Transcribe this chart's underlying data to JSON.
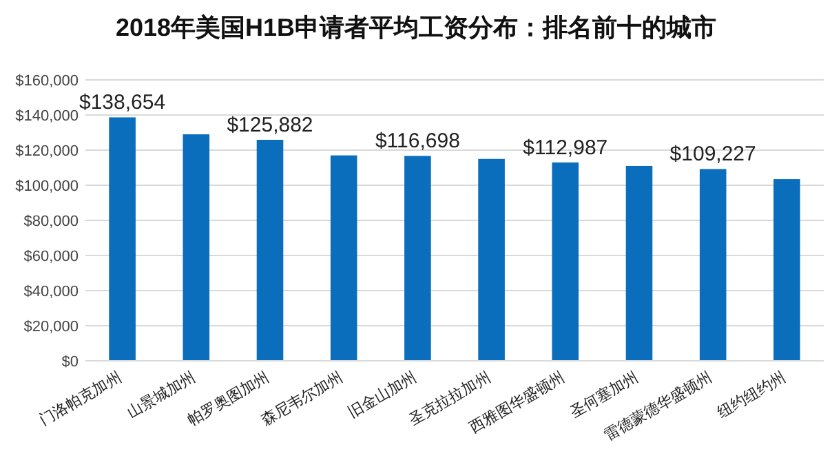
{
  "chart_data": {
    "type": "bar",
    "title": "2018年美国H1B申请者平均工资分布：排名前十的城市",
    "categories": [
      "门洛帕克加州",
      "山景城加州",
      "帕罗奥图加州",
      "森尼韦尔加州",
      "旧金山加州",
      "圣克拉拉加州",
      "西雅图华盛顿州",
      "圣何塞加州",
      "雷德蒙德华盛顿州",
      "纽约纽约州"
    ],
    "values": [
      138654,
      129000,
      125882,
      117000,
      116698,
      115000,
      112987,
      111000,
      109227,
      103500
    ],
    "value_labels": [
      "$138,654",
      null,
      "$125,882",
      null,
      "$116,698",
      null,
      "$112,987",
      null,
      "$109,227",
      null
    ],
    "color": "#0a6ebd",
    "ylim": [
      0,
      160000
    ],
    "yticks": [
      {
        "value": 0,
        "label": "$0"
      },
      {
        "value": 20000,
        "label": "$20,000"
      },
      {
        "value": 40000,
        "label": "$40,000"
      },
      {
        "value": 60000,
        "label": "$60,000"
      },
      {
        "value": 80000,
        "label": "$80,000"
      },
      {
        "value": 100000,
        "label": "$100,000"
      },
      {
        "value": 120000,
        "label": "$120,000"
      },
      {
        "value": 140000,
        "label": "$140,000"
      },
      {
        "value": 160000,
        "label": "$160,000"
      }
    ],
    "grid": "y"
  }
}
